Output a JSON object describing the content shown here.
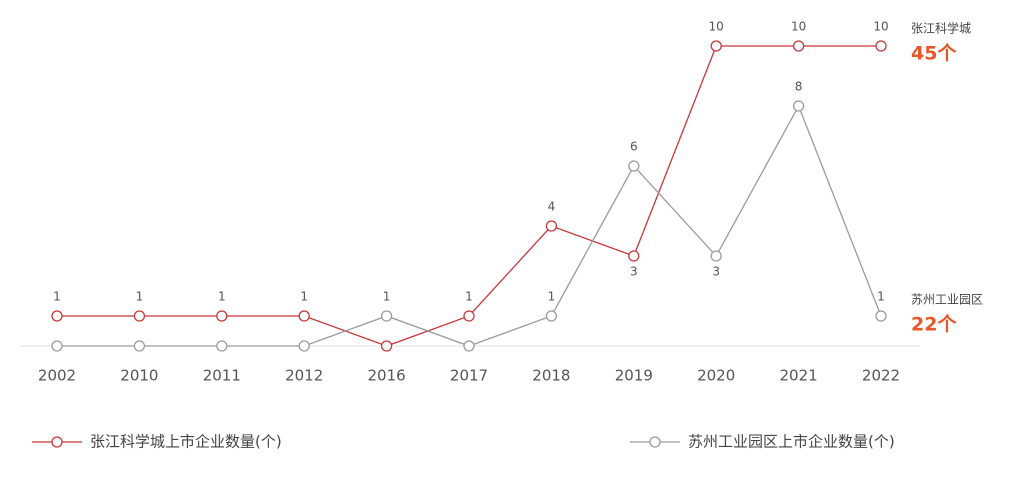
{
  "chart_data": {
    "type": "line",
    "categories": [
      "2002",
      "2010",
      "2011",
      "2012",
      "2016",
      "2017",
      "2018",
      "2019",
      "2020",
      "2021",
      "2022"
    ],
    "series": [
      {
        "name": "张江科学城上市企业数量(个)",
        "color": "#c8373a",
        "values": [
          1,
          1,
          1,
          1,
          0,
          1,
          4,
          3,
          10,
          10,
          10
        ]
      },
      {
        "name": "苏州工业园区上市企业数量(个)",
        "color": "#9b9b9b",
        "values": [
          0,
          0,
          0,
          0,
          1,
          0,
          1,
          6,
          3,
          8,
          1
        ]
      }
    ],
    "ylim": [
      0,
      10
    ],
    "annotations": [
      {
        "label": "张江科学城",
        "total": "45个"
      },
      {
        "label": "苏州工业园区",
        "total": "22个"
      }
    ]
  }
}
